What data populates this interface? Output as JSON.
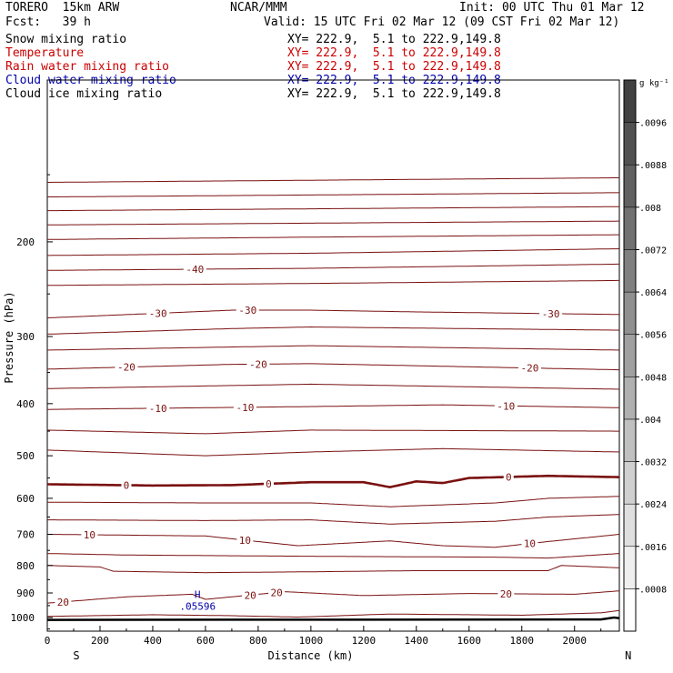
{
  "header": {
    "model": "TORERO  15km ARW",
    "org": "NCAR/MMM",
    "init": "Init: 00 UTC Thu 01 Mar 12",
    "fcst": "Fcst:   39 h",
    "valid": "Valid: 15 UTC Fri 02 Mar 12 (09 CST Fri 02 Mar 12)"
  },
  "fields": [
    {
      "name": "Snow mixing ratio",
      "xy": "XY= 222.9,  5.1 to 222.9,149.8",
      "color": "#000000"
    },
    {
      "name": "Temperature",
      "xy": "XY= 222.9,  5.1 to 222.9,149.8",
      "color": "#cc0000"
    },
    {
      "name": "Rain water mixing ratio",
      "xy": "XY= 222.9,  5.1 to 222.9,149.8",
      "color": "#cc0000"
    },
    {
      "name": "Cloud water mixing ratio",
      "xy": "XY= 222.9,  5.1 to 222.9,149.8",
      "color": "#0000aa"
    },
    {
      "name": "Cloud ice mixing ratio",
      "xy": "XY= 222.9,  5.1 to 222.9,149.8",
      "color": "#000000"
    }
  ],
  "colors": {
    "temperature": "#7a1010",
    "cloud_water": "#0000aa",
    "ground": "#000000"
  },
  "chart_data": {
    "type": "line",
    "xlabel": "Distance (km)",
    "ylabel": "Pressure (hPa)",
    "x_ticks": [
      "0",
      "200",
      "400",
      "600",
      "800",
      "1000",
      "1200",
      "1400",
      "1600",
      "1800",
      "2000"
    ],
    "y_ticks": [
      "200",
      "300",
      "400",
      "500",
      "600",
      "700",
      "800",
      "900",
      "1000"
    ],
    "xlim": [
      0,
      2170
    ],
    "ylim": [
      1060,
      100
    ],
    "y_scale": "log",
    "left_end_label": "S",
    "right_end_label": "N",
    "isotherms": [
      {
        "profile": [
          [
            0,
            155
          ],
          [
            2170,
            152
          ]
        ]
      },
      {
        "profile": [
          [
            0,
            165
          ],
          [
            2170,
            162
          ]
        ]
      },
      {
        "profile": [
          [
            0,
            175
          ],
          [
            2170,
            172
          ]
        ]
      },
      {
        "profile": [
          [
            0,
            186
          ],
          [
            2170,
            183
          ]
        ]
      },
      {
        "profile": [
          [
            0,
            198
          ],
          [
            1000,
            196
          ],
          [
            2170,
            194
          ]
        ]
      },
      {
        "profile": [
          [
            0,
            212
          ],
          [
            1000,
            210
          ],
          [
            2170,
            206
          ]
        ]
      },
      {
        "value": "-40",
        "profile": [
          [
            0,
            226
          ],
          [
            1000,
            224
          ],
          [
            2170,
            220
          ]
        ]
      },
      {
        "profile": [
          [
            0,
            241
          ],
          [
            1000,
            239
          ],
          [
            2170,
            236
          ]
        ]
      },
      {
        "value": "-30",
        "profile": [
          [
            0,
            277
          ],
          [
            700,
            268
          ],
          [
            1000,
            268
          ],
          [
            1400,
            270
          ],
          [
            2170,
            273
          ]
        ]
      },
      {
        "profile": [
          [
            0,
            297
          ],
          [
            700,
            290
          ],
          [
            1000,
            288
          ],
          [
            2170,
            292
          ]
        ]
      },
      {
        "profile": [
          [
            0,
            318
          ],
          [
            1000,
            312
          ],
          [
            2170,
            318
          ]
        ]
      },
      {
        "value": "-20",
        "profile": [
          [
            0,
            345
          ],
          [
            700,
            338
          ],
          [
            1000,
            337
          ],
          [
            1400,
            340
          ],
          [
            2170,
            346
          ]
        ]
      },
      {
        "profile": [
          [
            0,
            375
          ],
          [
            1000,
            368
          ],
          [
            2170,
            376
          ]
        ]
      },
      {
        "value": "-10",
        "profile": [
          [
            0,
            410
          ],
          [
            1000,
            405
          ],
          [
            1500,
            402
          ],
          [
            2170,
            407
          ]
        ]
      },
      {
        "profile": [
          [
            0,
            448
          ],
          [
            600,
            455
          ],
          [
            1000,
            448
          ],
          [
            2170,
            450
          ]
        ]
      },
      {
        "profile": [
          [
            0,
            488
          ],
          [
            600,
            500
          ],
          [
            1000,
            492
          ],
          [
            1500,
            485
          ],
          [
            2170,
            492
          ]
        ]
      },
      {
        "value": "0",
        "bold": true,
        "profile": [
          [
            0,
            565
          ],
          [
            400,
            568
          ],
          [
            700,
            567
          ],
          [
            1000,
            560
          ],
          [
            1200,
            560
          ],
          [
            1300,
            572
          ],
          [
            1400,
            558
          ],
          [
            1500,
            562
          ],
          [
            1600,
            550
          ],
          [
            1900,
            545
          ],
          [
            2170,
            548
          ]
        ]
      },
      {
        "profile": [
          [
            0,
            610
          ],
          [
            600,
            612
          ],
          [
            1000,
            612
          ],
          [
            1300,
            622
          ],
          [
            1700,
            612
          ],
          [
            1900,
            600
          ],
          [
            2170,
            595
          ]
        ]
      },
      {
        "profile": [
          [
            0,
            658
          ],
          [
            600,
            660
          ],
          [
            1000,
            658
          ],
          [
            1300,
            670
          ],
          [
            1700,
            662
          ],
          [
            1900,
            650
          ],
          [
            2170,
            643
          ]
        ]
      },
      {
        "value": "10",
        "profile": [
          [
            0,
            700
          ],
          [
            600,
            705
          ],
          [
            950,
            735
          ],
          [
            1300,
            720
          ],
          [
            1500,
            735
          ],
          [
            1700,
            740
          ],
          [
            1900,
            722
          ],
          [
            2170,
            700
          ]
        ]
      },
      {
        "profile": [
          [
            0,
            760
          ],
          [
            300,
            765
          ],
          [
            800,
            768
          ],
          [
            1200,
            770
          ],
          [
            1700,
            772
          ],
          [
            1900,
            775
          ],
          [
            2170,
            760
          ]
        ]
      },
      {
        "profile": [
          [
            0,
            800
          ],
          [
            200,
            805
          ],
          [
            250,
            820
          ],
          [
            600,
            825
          ],
          [
            1000,
            822
          ],
          [
            1400,
            818
          ],
          [
            1900,
            818
          ],
          [
            1950,
            800
          ],
          [
            2170,
            808
          ]
        ]
      },
      {
        "value": "20",
        "profile": [
          [
            0,
            940
          ],
          [
            300,
            915
          ],
          [
            550,
            905
          ],
          [
            600,
            925
          ],
          [
            900,
            895
          ],
          [
            1200,
            910
          ],
          [
            1600,
            902
          ],
          [
            2000,
            905
          ],
          [
            2170,
            892
          ]
        ]
      },
      {
        "profile": [
          [
            0,
            995
          ],
          [
            400,
            988
          ],
          [
            700,
            992
          ],
          [
            950,
            998
          ],
          [
            1300,
            985
          ],
          [
            1800,
            990
          ],
          [
            2100,
            980
          ],
          [
            2170,
            970
          ]
        ]
      }
    ],
    "ground_profile": [
      [
        0,
        1010
      ],
      [
        2100,
        1008
      ],
      [
        2150,
        1000
      ],
      [
        2170,
        1003
      ]
    ],
    "cloud_water_max": {
      "x": 570,
      "p": 905,
      "label": "H",
      "value": ".05596"
    },
    "colorbar": {
      "unit": "g kg⁻¹",
      "ticks": [
        ".0008",
        ".0016",
        ".0024",
        ".0032",
        ".004",
        ".0048",
        ".0056",
        ".0064",
        ".0072",
        ".008",
        ".0088",
        ".0096"
      ]
    }
  }
}
